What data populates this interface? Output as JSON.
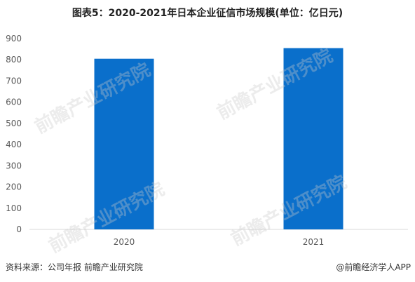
{
  "title": "图表5：2020-2021年日本企业征信市场规模(单位：亿日元)",
  "source": "资料来源：公司年报 前瞻产业研究院",
  "credit": "@前瞻经济学人APP",
  "watermark": "前瞻产业研究院",
  "colors": {
    "bar": "#0a6fcb",
    "axis": "#d9d9d9",
    "tick_text": "#595959"
  },
  "chart_data": {
    "type": "bar",
    "title": "图表5：2020-2021年日本企业征信市场规模(单位：亿日元)",
    "categories": [
      "2020",
      "2021"
    ],
    "values": [
      805,
      855
    ],
    "ylim": [
      0,
      900
    ],
    "yticks": [
      0,
      100,
      200,
      300,
      400,
      500,
      600,
      700,
      800,
      900
    ],
    "grid": false,
    "xlabel": "",
    "ylabel": ""
  }
}
